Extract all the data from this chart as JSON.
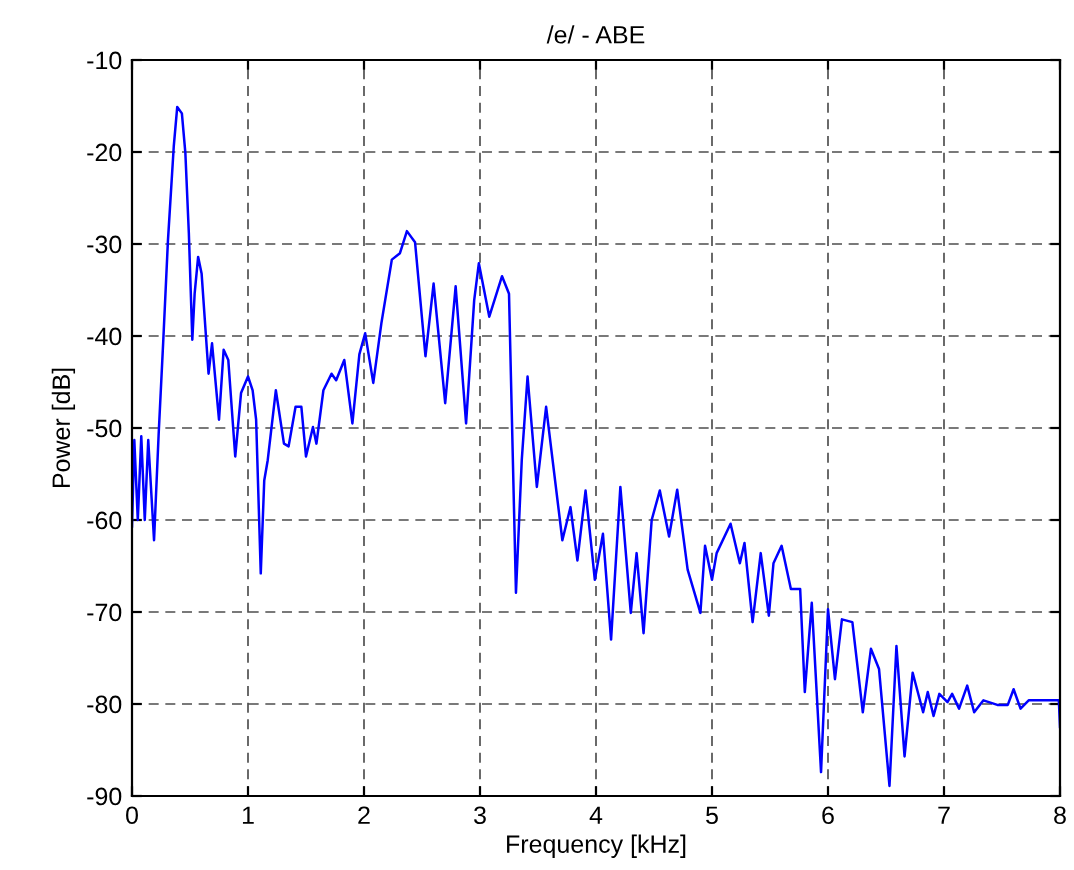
{
  "chart_data": {
    "type": "line",
    "title": "/e/ - ABE",
    "xlabel": "Frequency [kHz]",
    "ylabel": "Power [dB]",
    "xlim": [
      0,
      8
    ],
    "ylim": [
      -90,
      -10
    ],
    "xticks": [
      0,
      1,
      2,
      3,
      4,
      5,
      6,
      7,
      8
    ],
    "yticks": [
      -90,
      -80,
      -70,
      -60,
      -50,
      -40,
      -30,
      -20,
      -10
    ],
    "grid": true,
    "line_style": "solid",
    "marker": "none",
    "series": [
      {
        "color": "#0000ff",
        "x": [
          0.0,
          0.02,
          0.05,
          0.08,
          0.11,
          0.14,
          0.19,
          0.23,
          0.27,
          0.31,
          0.36,
          0.39,
          0.43,
          0.46,
          0.49,
          0.52,
          0.54,
          0.57,
          0.6,
          0.66,
          0.69,
          0.75,
          0.79,
          0.83,
          0.89,
          0.94,
          1.0,
          1.04,
          1.07,
          1.11,
          1.14,
          1.17,
          1.24,
          1.31,
          1.35,
          1.41,
          1.46,
          1.5,
          1.56,
          1.59,
          1.65,
          1.72,
          1.76,
          1.83,
          1.9,
          1.96,
          2.01,
          2.08,
          2.15,
          2.24,
          2.31,
          2.37,
          2.44,
          2.53,
          2.6,
          2.7,
          2.79,
          2.88,
          2.95,
          2.99,
          3.08,
          3.19,
          3.25,
          3.31,
          3.36,
          3.41,
          3.49,
          3.57,
          3.71,
          3.78,
          3.84,
          3.91,
          3.99,
          4.06,
          4.13,
          4.21,
          4.3,
          4.35,
          4.41,
          4.48,
          4.55,
          4.63,
          4.7,
          4.79,
          4.9,
          4.94,
          5.0,
          5.04,
          5.16,
          5.24,
          5.28,
          5.35,
          5.42,
          5.49,
          5.53,
          5.6,
          5.68,
          5.76,
          5.8,
          5.86,
          5.94,
          6.0,
          6.06,
          6.12,
          6.21,
          6.3,
          6.37,
          6.44,
          6.53,
          6.59,
          6.66,
          6.73,
          6.82,
          6.86,
          6.91,
          6.96,
          7.03,
          7.07,
          7.13,
          7.2,
          7.26,
          7.34,
          7.46,
          7.55,
          7.6,
          7.66,
          7.73,
          7.99,
          8.0
        ],
        "values": [
          -60.7,
          -51.3,
          -60,
          -50.9,
          -60,
          -51.3,
          -62.2,
          -50.6,
          -40.4,
          -29.6,
          -19.4,
          -15.1,
          -15.8,
          -20.1,
          -28.8,
          -40.4,
          -35.4,
          -31.4,
          -33.2,
          -44.1,
          -40.8,
          -49.1,
          -41.5,
          -42.6,
          -53.1,
          -46.2,
          -44.4,
          -45.9,
          -49.1,
          -65.8,
          -55.7,
          -53.5,
          -45.9,
          -51.7,
          -52,
          -47.7,
          -47.7,
          -53.1,
          -49.9,
          -51.7,
          -45.9,
          -44.1,
          -44.8,
          -42.6,
          -49.5,
          -42,
          -39.7,
          -45.1,
          -38.6,
          -31.7,
          -31,
          -28.6,
          -29.8,
          -42.2,
          -34.3,
          -47.3,
          -34.6,
          -49.5,
          -36.1,
          -32.1,
          -37.9,
          -33.5,
          -35.4,
          -67.9,
          -53.5,
          -44.4,
          -56.4,
          -47.7,
          -62.2,
          -58.6,
          -64.4,
          -56.8,
          -66.5,
          -61.5,
          -73,
          -56.4,
          -70.1,
          -63.6,
          -72.3,
          -60,
          -56.8,
          -61.8,
          -56.7,
          -65.4,
          -70.1,
          -62.8,
          -66.5,
          -63.6,
          -60.4,
          -64.7,
          -62.5,
          -71.1,
          -63.6,
          -70.4,
          -64.7,
          -62.8,
          -67.5,
          -67.5,
          -78.7,
          -69,
          -87.4,
          -69.7,
          -77.3,
          -70.8,
          -71.1,
          -80.9,
          -74,
          -76.2,
          -88.9,
          -73.7,
          -85.7,
          -76.6,
          -80.9,
          -78.7,
          -81.3,
          -78.9,
          -79.8,
          -78.9,
          -80.5,
          -78,
          -80.9,
          -79.6,
          -80.1,
          -80.1,
          -78.4,
          -80.5,
          -79.6,
          -79.6,
          -82.5
        ]
      }
    ]
  }
}
